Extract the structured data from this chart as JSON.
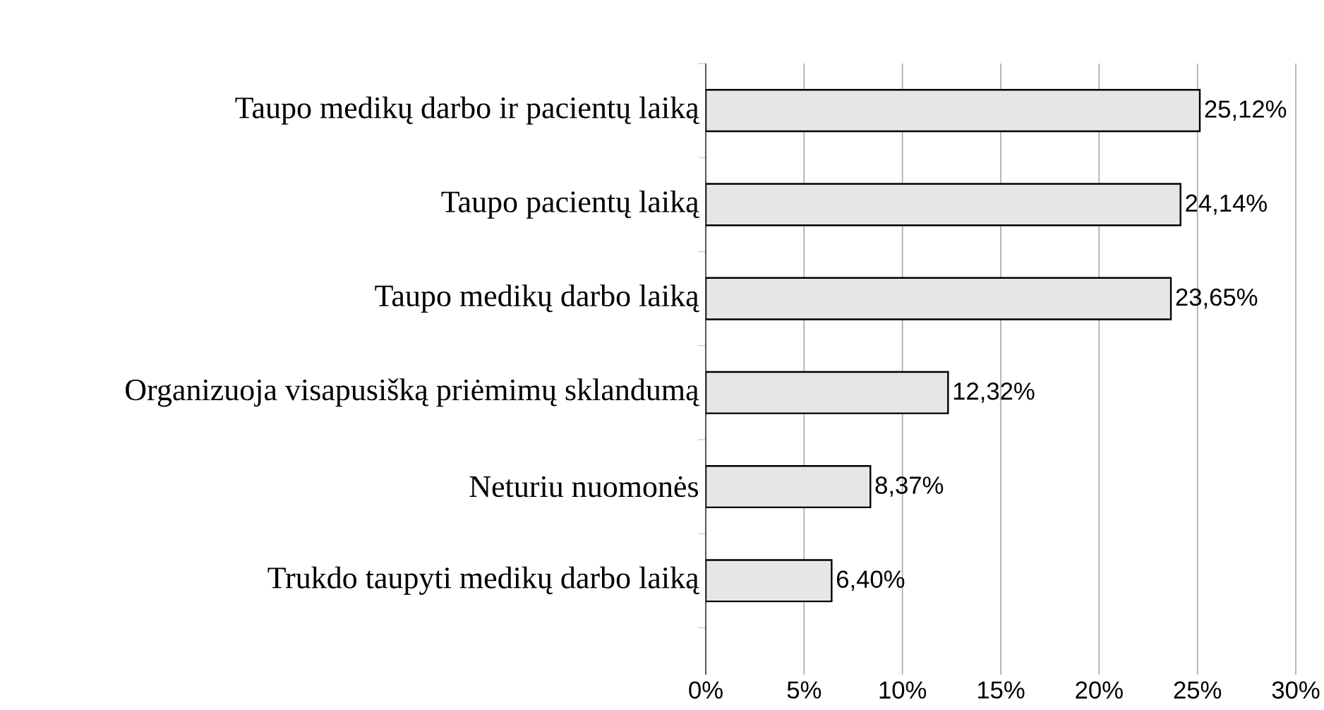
{
  "chart_data": {
    "type": "bar",
    "orientation": "horizontal",
    "categories": [
      "Taupo medikų darbo ir pacientų laiką",
      "Taupo pacientų laiką",
      "Taupo medikų darbo laiką",
      "Organizuoja visapusišką priėmimų sklandumą",
      "Neturiu nuomonės",
      "Trukdo taupyti medikų darbo laiką"
    ],
    "values": [
      25.12,
      24.14,
      23.65,
      12.32,
      8.37,
      6.4
    ],
    "value_labels": [
      "25,12%",
      "24,14%",
      "23,65%",
      "12,32%",
      "8,37%",
      "6,40%"
    ],
    "color": "#e6e6e6",
    "xlim": [
      0,
      30
    ],
    "xticks": [
      {
        "value": 0,
        "label": "0%"
      },
      {
        "value": 5,
        "label": "5%"
      },
      {
        "value": 10,
        "label": "10%"
      },
      {
        "value": 15,
        "label": "15%"
      },
      {
        "value": 20,
        "label": "20%"
      },
      {
        "value": 25,
        "label": "25%"
      },
      {
        "value": 30,
        "label": "30%"
      }
    ],
    "grid": "x"
  }
}
